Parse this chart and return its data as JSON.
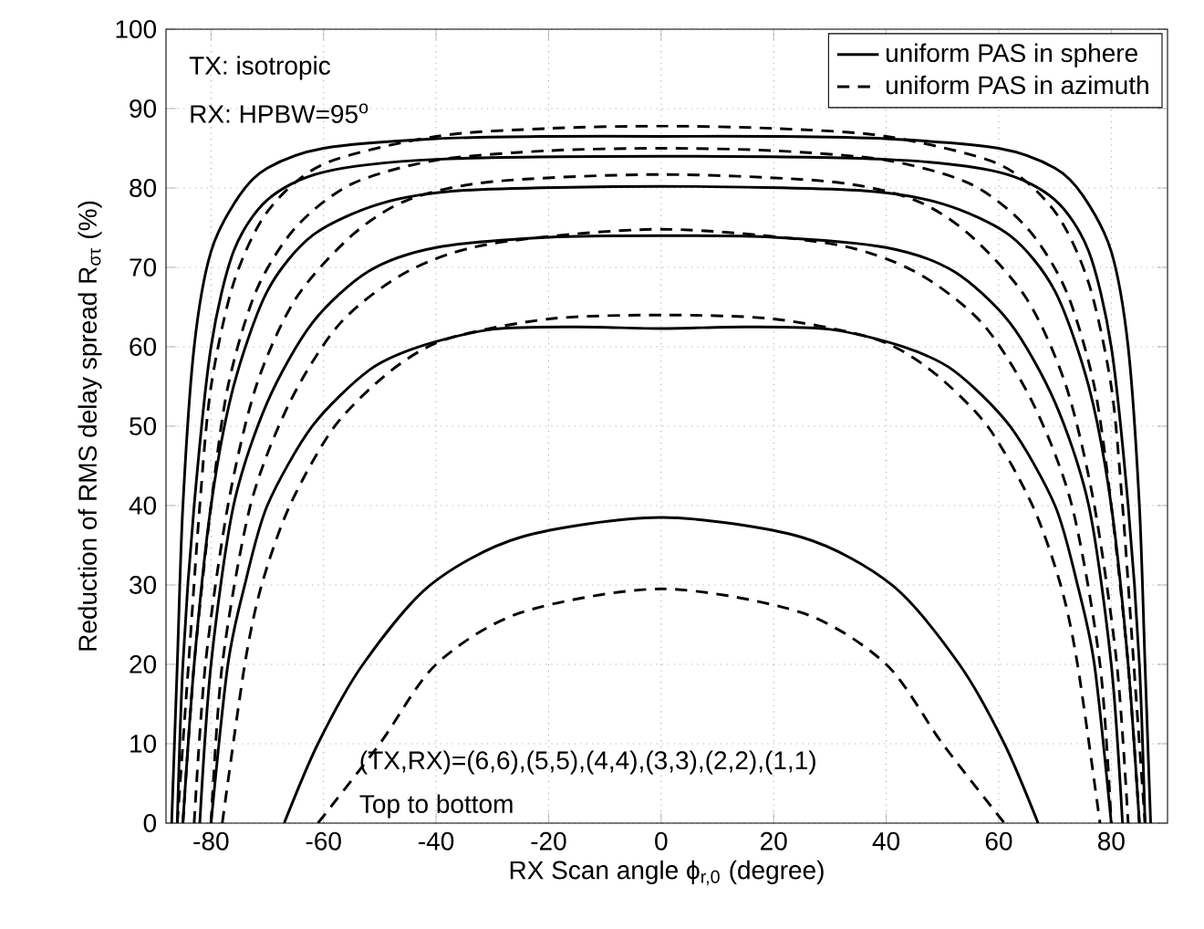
{
  "chart_data": {
    "type": "line",
    "xlabel": "RX Scan angle ϕ$_{r,0}$ (degree)",
    "ylabel": "Reduction of RMS delay spread R$_{στ}$ (%)",
    "xlim": [
      -88,
      90
    ],
    "ylim": [
      0,
      100
    ],
    "xticks": [
      -80,
      -60,
      -40,
      -20,
      0,
      20,
      40,
      60,
      80
    ],
    "yticks": [
      0,
      10,
      20,
      30,
      40,
      50,
      60,
      70,
      80,
      90,
      100
    ],
    "grid": true,
    "legend": "top right",
    "marker": "none",
    "annotations": [
      "TX: isotropic",
      "RX: HPBW=95$^{o}$",
      "(TX,RX)=(6,6),(5,5),(4,4),(3,3),(2,2),(1,1)",
      "Top to bottom"
    ],
    "series": [
      {
        "name": "uniform PAS in sphere",
        "color": "#000000",
        "line_style": "solid",
        "x": [
          -87,
          -86,
          -85,
          -83,
          -80,
          -75,
          -70,
          -60,
          -40,
          -20,
          0,
          20,
          40,
          60,
          70,
          75,
          80,
          83,
          85,
          86,
          87
        ],
        "values": [
          0,
          20,
          40,
          60,
          72,
          79,
          82.5,
          85,
          86.2,
          86.5,
          86.5,
          86.5,
          86.2,
          85,
          82.5,
          79,
          72,
          60,
          40,
          20,
          0
        ]
      },
      {
        "name": "uniform PAS in azimuth",
        "color": "#000000",
        "line_style": "dashed",
        "x": [
          -86,
          -84,
          -82,
          -80,
          -76,
          -70,
          -60,
          -40,
          -20,
          0,
          20,
          40,
          60,
          70,
          76,
          80,
          82,
          84,
          86
        ],
        "values": [
          0,
          20,
          40,
          55,
          68,
          77,
          83,
          86.5,
          87.5,
          87.8,
          87.5,
          86.5,
          83,
          77,
          68,
          55,
          40,
          20,
          0
        ]
      },
      {
        "color": "#000000",
        "line_style": "solid",
        "x": [
          -86,
          -85,
          -83,
          -80,
          -76,
          -70,
          -60,
          -40,
          0,
          40,
          60,
          70,
          76,
          80,
          83,
          85,
          86
        ],
        "values": [
          0,
          20,
          40,
          60,
          72,
          78.5,
          82,
          83.6,
          84,
          83.6,
          82,
          78.5,
          72,
          60,
          40,
          20,
          0
        ]
      },
      {
        "color": "#000000",
        "line_style": "dashed",
        "x": [
          -85,
          -83,
          -80,
          -77,
          -72,
          -65,
          -55,
          -40,
          -20,
          0,
          20,
          40,
          55,
          65,
          72,
          77,
          80,
          83,
          85
        ],
        "values": [
          0,
          20,
          40,
          55,
          67,
          75,
          80.5,
          83.5,
          84.7,
          85,
          84.7,
          83.5,
          80.5,
          75,
          67,
          55,
          40,
          20,
          0
        ]
      },
      {
        "color": "#000000",
        "line_style": "solid",
        "x": [
          -85,
          -83,
          -80,
          -76,
          -70,
          -62,
          -50,
          -35,
          0,
          35,
          50,
          62,
          70,
          76,
          80,
          83,
          85
        ],
        "values": [
          0,
          20,
          40,
          55,
          67,
          74,
          78,
          79.7,
          80.2,
          79.7,
          78,
          74,
          67,
          55,
          40,
          20,
          0
        ]
      },
      {
        "color": "#000000",
        "line_style": "dashed",
        "x": [
          -83,
          -81,
          -77,
          -72,
          -65,
          -55,
          -45,
          -30,
          0,
          30,
          45,
          55,
          65,
          72,
          77,
          81,
          83
        ],
        "values": [
          0,
          20,
          40,
          55,
          66,
          74,
          78.5,
          80.8,
          81.7,
          80.8,
          78.5,
          74,
          66,
          55,
          40,
          20,
          0
        ]
      },
      {
        "color": "#000000",
        "line_style": "solid",
        "x": [
          -82,
          -80,
          -76,
          -70,
          -62,
          -52,
          -40,
          -20,
          0,
          20,
          40,
          52,
          62,
          70,
          76,
          80,
          82
        ],
        "values": [
          0,
          20,
          40,
          53,
          63,
          69.5,
          72.5,
          73.8,
          74,
          73.8,
          72.5,
          69.5,
          63,
          53,
          40,
          20,
          0
        ]
      },
      {
        "color": "#000000",
        "line_style": "dashed",
        "x": [
          -80,
          -78,
          -73,
          -66,
          -57,
          -45,
          -30,
          0,
          30,
          45,
          57,
          66,
          73,
          78,
          80
        ],
        "values": [
          0,
          20,
          40,
          53,
          63,
          69.5,
          73,
          74.8,
          73,
          69.5,
          63,
          53,
          40,
          20,
          0
        ]
      },
      {
        "color": "#000000",
        "line_style": "solid",
        "x": [
          -80,
          -77,
          -74,
          -70,
          -62,
          -52,
          -43,
          -30,
          -15,
          0,
          15,
          30,
          43,
          52,
          62,
          70,
          74,
          77,
          80
        ],
        "values": [
          0,
          20,
          30,
          40,
          50,
          57,
          60,
          62.2,
          62.5,
          62.3,
          62.5,
          62.2,
          60,
          57,
          50,
          40,
          30,
          20,
          0
        ]
      },
      {
        "color": "#000000",
        "line_style": "dashed",
        "x": [
          -78,
          -74,
          -71,
          -66,
          -58,
          -48,
          -38,
          -20,
          0,
          20,
          38,
          48,
          58,
          66,
          71,
          74,
          78
        ],
        "values": [
          0,
          20,
          30,
          40,
          50,
          57,
          61,
          63.5,
          64,
          63.5,
          61,
          57,
          50,
          40,
          30,
          20,
          0
        ]
      },
      {
        "color": "#000000",
        "line_style": "solid",
        "x": [
          -67,
          -61,
          -53,
          -41,
          -25,
          0,
          25,
          41,
          53,
          61,
          67
        ],
        "values": [
          0,
          10,
          20,
          30,
          36,
          38.5,
          36,
          30,
          20,
          10,
          0
        ]
      },
      {
        "color": "#000000",
        "line_style": "dashed",
        "x": [
          -61,
          -50,
          -40,
          -25,
          0,
          25,
          40,
          50,
          61
        ],
        "values": [
          0,
          10,
          20,
          26.5,
          29.5,
          26.5,
          20,
          10,
          0
        ]
      }
    ]
  }
}
